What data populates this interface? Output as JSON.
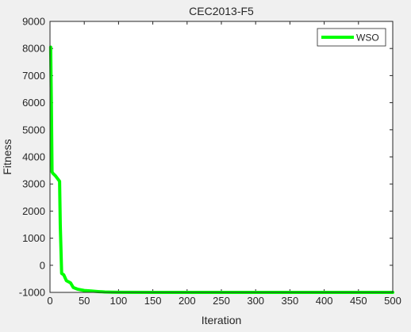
{
  "chart_data": {
    "type": "line",
    "title": "CEC2013-F5",
    "xlabel": "Iteration",
    "ylabel": "Fitness",
    "xlim": [
      0,
      500
    ],
    "ylim": [
      -1000,
      9000
    ],
    "xticks": [
      0,
      50,
      100,
      150,
      200,
      250,
      300,
      350,
      400,
      450,
      500
    ],
    "yticks": [
      -1000,
      0,
      1000,
      2000,
      3000,
      4000,
      5000,
      6000,
      7000,
      8000,
      9000
    ],
    "grid": false,
    "legend_position": "top-right",
    "colors": {
      "background": "#f0f0f0",
      "plot_area": "#ffffff",
      "axis": "#262626",
      "series": "#00ff00"
    },
    "series": [
      {
        "name": "WSO",
        "x": [
          1,
          2,
          3,
          4,
          8,
          14,
          15,
          17,
          20,
          24,
          30,
          34,
          40,
          50,
          60,
          70,
          80,
          90,
          100,
          150,
          200,
          300,
          400,
          500
        ],
        "y": [
          8050,
          6000,
          3450,
          3400,
          3300,
          3100,
          1500,
          -300,
          -350,
          -570,
          -650,
          -820,
          -880,
          -930,
          -950,
          -970,
          -985,
          -993,
          -997,
          -1000,
          -1000,
          -1000,
          -1000,
          -1000
        ]
      }
    ]
  }
}
